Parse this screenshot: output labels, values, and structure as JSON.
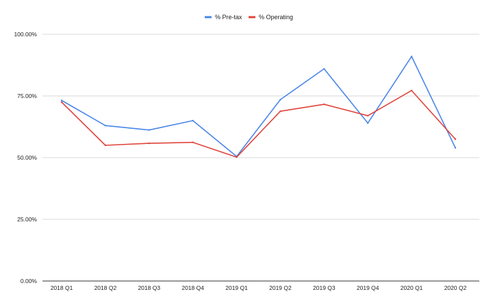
{
  "chart_data": {
    "type": "line",
    "title": "",
    "xlabel": "",
    "ylabel": "",
    "categories": [
      "2018 Q1",
      "2018 Q2",
      "2018 Q3",
      "2018 Q4",
      "2019 Q1",
      "2019 Q2",
      "2019 Q3",
      "2019 Q4",
      "2020 Q1",
      "2020 Q2"
    ],
    "ylim": [
      0,
      100
    ],
    "yticks": [
      {
        "value": 0,
        "label": "0.00%"
      },
      {
        "value": 25,
        "label": "25.00%"
      },
      {
        "value": 50,
        "label": "50.00%"
      },
      {
        "value": 75,
        "label": "75.00%"
      },
      {
        "value": 100,
        "label": "100.00%"
      }
    ],
    "grid": true,
    "legend": "top-center",
    "series": [
      {
        "name": "% Pre-tax",
        "color": "#4a86e8",
        "values": [
          73.2,
          63.0,
          61.2,
          65.0,
          50.5,
          73.5,
          86.0,
          64.0,
          91.0,
          54.0
        ]
      },
      {
        "name": "% Operating",
        "color": "#e0443b",
        "values": [
          72.5,
          55.0,
          55.8,
          56.2,
          50.2,
          68.8,
          71.6,
          67.0,
          77.2,
          57.5
        ]
      }
    ]
  }
}
